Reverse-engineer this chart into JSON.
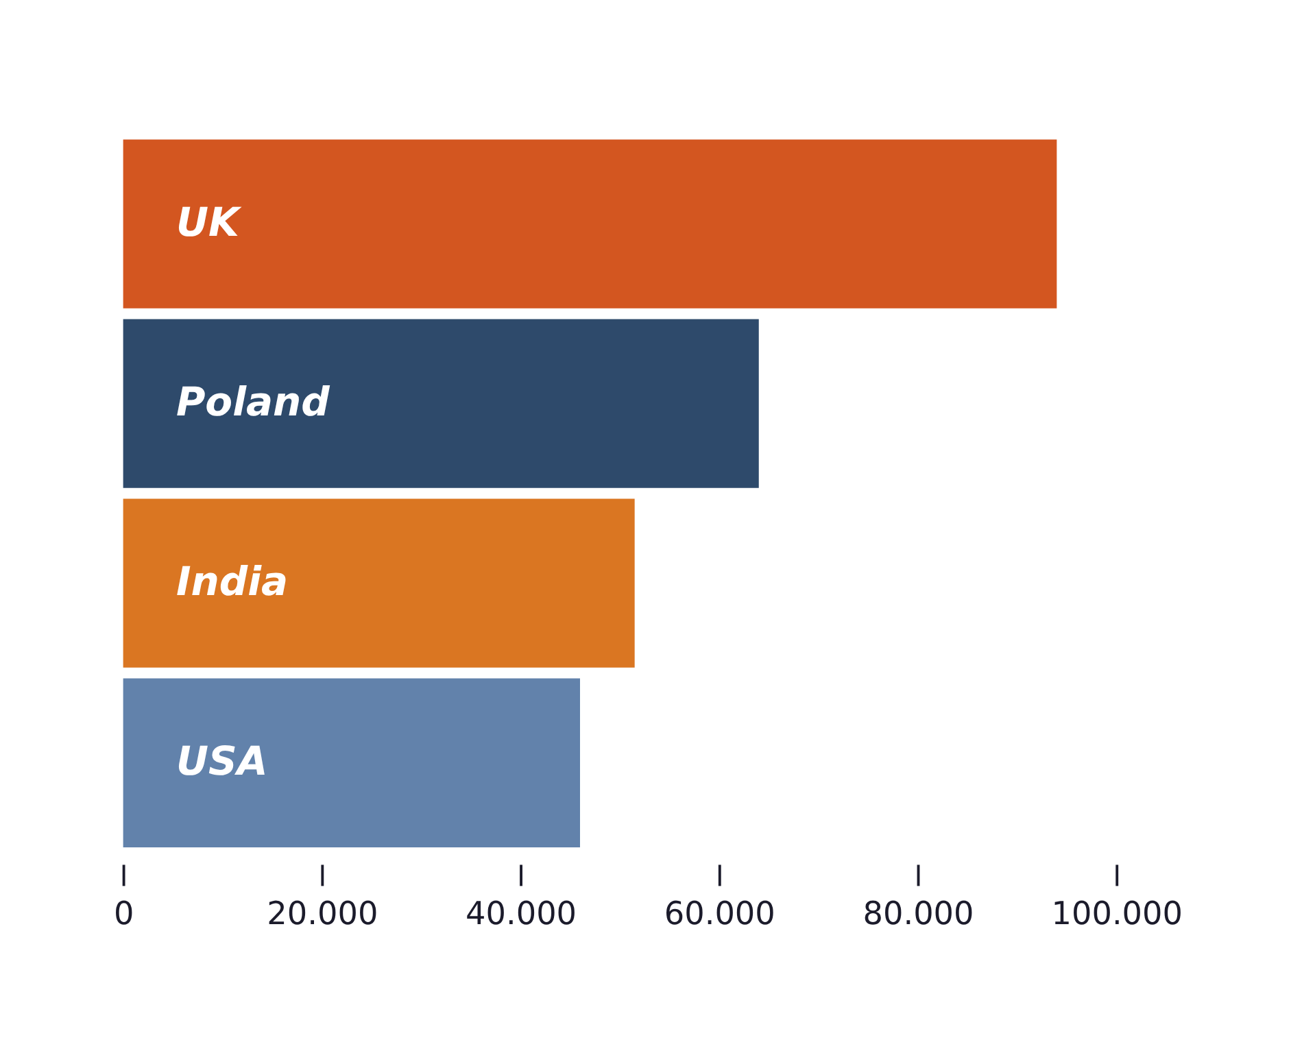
{
  "chart_data": {
    "type": "bar",
    "orientation": "horizontal",
    "categories": [
      "UK",
      "Poland",
      "India",
      "USA"
    ],
    "values": [
      94000,
      64000,
      51500,
      46000
    ],
    "colors": [
      "#d35620",
      "#2e4a6b",
      "#da7622",
      "#6282ab"
    ],
    "xlim": [
      0,
      100000
    ],
    "xticks": [
      0,
      {
        "value": 20000,
        "label": "20.000"
      },
      {
        "value": 40000,
        "label": "40.000"
      },
      {
        "value": 60000,
        "label": "60.000"
      },
      {
        "value": 80000,
        "label": "80.000"
      },
      {
        "value": 100000,
        "label": "100.000"
      }
    ],
    "grid": false,
    "legend": false
  }
}
